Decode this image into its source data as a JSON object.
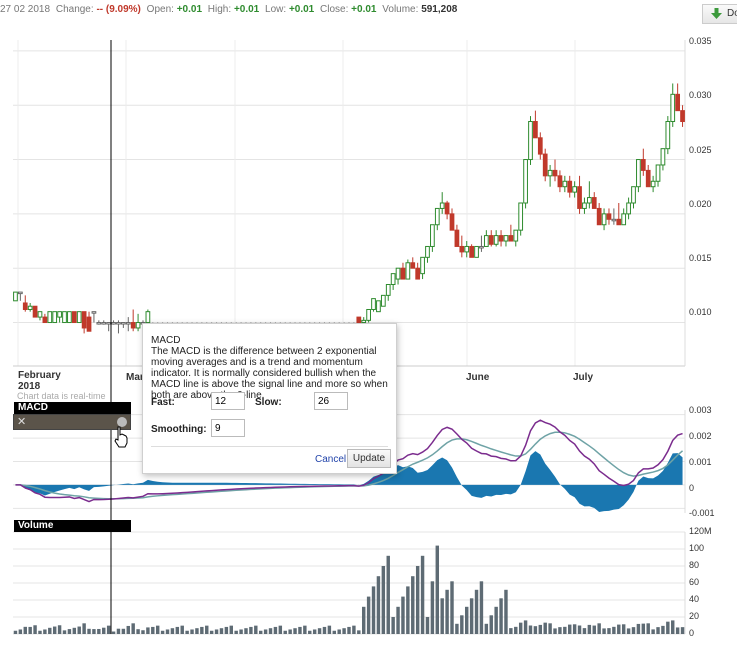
{
  "header": {
    "date": "27 02 2018",
    "change_label": "Change:",
    "change_value": "-- (9.09%)",
    "open_label": "Open:",
    "open_value": "+0.01",
    "high_label": "High:",
    "high_value": "+0.01",
    "low_label": "Low:",
    "low_value": "+0.01",
    "close_label": "Close:",
    "close_value": "+0.01",
    "volume_label": "Volume:",
    "volume_value": "591,208",
    "download_label": "Do"
  },
  "colors": {
    "up": "#2e8b2e",
    "down": "#c0392b",
    "flat": "#666666",
    "macd_line": "#7b2c8e",
    "signal_line": "#6fa3a6",
    "histogram": "#1a77b0",
    "volume": "#5e6b74"
  },
  "months": [
    "February",
    "2018",
    "Mar",
    "June",
    "July"
  ],
  "realtime_note": "Chart data is real-time",
  "price_axis": [
    "0.035",
    "0.030",
    "0.025",
    "0.020",
    "0.015",
    "0.010"
  ],
  "macd_axis": [
    "0.003",
    "0.002",
    "0.001",
    "0",
    "-0.001"
  ],
  "volume_axis": [
    "120M",
    "100",
    "80",
    "60",
    "40",
    "20",
    "0"
  ],
  "macd_panel_label": "MACD",
  "volume_panel_label": "Volume",
  "macd_dialog": {
    "title": "MACD",
    "description": "The MACD is the difference between 2 exponential moving averages and is a trend and momentum indicator. It is normally considered bullish when the MACD line is above the signal line and more so when both are above the 0-line.",
    "fast_label": "Fast:",
    "fast_value": "12",
    "slow_label": "Slow:",
    "slow_value": "26",
    "smoothing_label": "Smoothing:",
    "smoothing_value": "9",
    "cancel_label": "Cancel",
    "update_label": "Update"
  },
  "chart_data": {
    "type": "candlestick",
    "price_ylim": [
      0.006,
      0.036
    ],
    "candles": [
      [
        0.012,
        0.0128,
        0.012,
        0.0128
      ],
      [
        0.0128,
        0.0128,
        0.012,
        0.0128
      ],
      [
        0.0118,
        0.0125,
        0.011,
        0.0112
      ],
      [
        0.0112,
        0.0118,
        0.011,
        0.0115
      ],
      [
        0.0115,
        0.0115,
        0.0105,
        0.0105
      ],
      [
        0.0105,
        0.011,
        0.0102,
        0.011
      ],
      [
        0.0105,
        0.0108,
        0.01,
        0.01
      ],
      [
        0.01,
        0.011,
        0.01,
        0.011
      ],
      [
        0.01,
        0.011,
        0.01,
        0.011
      ],
      [
        0.0105,
        0.011,
        0.01,
        0.011
      ],
      [
        0.01,
        0.011,
        0.01,
        0.011
      ],
      [
        0.01,
        0.011,
        0.01,
        0.011
      ],
      [
        0.011,
        0.011,
        0.01,
        0.01
      ],
      [
        0.01,
        0.011,
        0.01,
        0.011
      ],
      [
        0.011,
        0.011,
        0.009,
        0.0095
      ],
      [
        0.0105,
        0.011,
        0.0092,
        0.0092
      ],
      [
        0.011,
        0.011,
        0.01,
        0.011
      ],
      [
        0.01,
        0.0102,
        0.0098,
        0.01
      ],
      [
        0.01,
        0.0102,
        0.0098,
        0.01
      ],
      [
        0.01,
        0.01,
        0.0092,
        0.01
      ],
      [
        0.01,
        0.0102,
        0.0098,
        0.01
      ],
      [
        0.01,
        0.0102,
        0.009,
        0.01
      ],
      [
        0.01,
        0.01,
        0.0095,
        0.01
      ],
      [
        0.01,
        0.0105,
        0.0092,
        0.01
      ],
      [
        0.01,
        0.0112,
        0.0092,
        0.0095
      ],
      [
        0.0095,
        0.0108,
        0.0092,
        0.01
      ],
      [
        0.01,
        0.0102,
        0.0098,
        0.01
      ],
      [
        0.01,
        0.0112,
        0.01,
        0.011
      ],
      [
        0.0098,
        0.01,
        0.0092,
        0.0098
      ],
      [
        0.0098,
        0.01,
        0.0092,
        0.0098
      ],
      [
        0.0098,
        0.01,
        0.0092,
        0.0098
      ],
      [
        0.0098,
        0.01,
        0.0092,
        0.0098
      ],
      [
        0.0098,
        0.01,
        0.0092,
        0.0098
      ],
      [
        0.0098,
        0.01,
        0.0092,
        0.0098
      ],
      [
        0.0098,
        0.01,
        0.0092,
        0.0098
      ],
      [
        0.0098,
        0.01,
        0.0092,
        0.0098
      ],
      [
        0.0098,
        0.01,
        0.0092,
        0.0098
      ],
      [
        0.0098,
        0.01,
        0.0092,
        0.0098
      ],
      [
        0.0098,
        0.01,
        0.0092,
        0.0098
      ],
      [
        0.0098,
        0.01,
        0.0092,
        0.0098
      ],
      [
        0.0098,
        0.01,
        0.0092,
        0.0098
      ],
      [
        0.0098,
        0.01,
        0.0092,
        0.0098
      ],
      [
        0.0098,
        0.01,
        0.0092,
        0.0098
      ],
      [
        0.0098,
        0.01,
        0.0092,
        0.0098
      ],
      [
        0.0098,
        0.01,
        0.0092,
        0.0098
      ],
      [
        0.0098,
        0.01,
        0.0092,
        0.0098
      ],
      [
        0.0098,
        0.01,
        0.0092,
        0.0098
      ],
      [
        0.0098,
        0.01,
        0.0092,
        0.0098
      ],
      [
        0.0098,
        0.01,
        0.0092,
        0.0098
      ],
      [
        0.0098,
        0.01,
        0.0092,
        0.0098
      ],
      [
        0.0098,
        0.01,
        0.0092,
        0.0098
      ],
      [
        0.0098,
        0.01,
        0.0092,
        0.0098
      ],
      [
        0.0098,
        0.01,
        0.0092,
        0.0098
      ],
      [
        0.0098,
        0.01,
        0.0092,
        0.0098
      ],
      [
        0.0098,
        0.01,
        0.0092,
        0.0098
      ],
      [
        0.0098,
        0.01,
        0.0092,
        0.0098
      ],
      [
        0.0098,
        0.01,
        0.0092,
        0.0098
      ],
      [
        0.0098,
        0.01,
        0.0092,
        0.0098
      ],
      [
        0.0098,
        0.01,
        0.0092,
        0.0098
      ],
      [
        0.0098,
        0.01,
        0.0092,
        0.0098
      ],
      [
        0.0098,
        0.01,
        0.0092,
        0.0098
      ],
      [
        0.0098,
        0.01,
        0.0092,
        0.0098
      ],
      [
        0.0098,
        0.01,
        0.0092,
        0.0098
      ],
      [
        0.0098,
        0.01,
        0.0092,
        0.0098
      ],
      [
        0.0098,
        0.01,
        0.0092,
        0.0098
      ],
      [
        0.0098,
        0.01,
        0.0092,
        0.0098
      ],
      [
        0.0098,
        0.01,
        0.0092,
        0.0098
      ],
      [
        0.0098,
        0.01,
        0.0092,
        0.0098
      ],
      [
        0.0098,
        0.01,
        0.0092,
        0.0098
      ],
      [
        0.0098,
        0.01,
        0.0092,
        0.0098
      ],
      [
        0.0105,
        0.0105,
        0.0095,
        0.0095
      ],
      [
        0.01,
        0.0105,
        0.01,
        0.0102
      ],
      [
        0.0102,
        0.0112,
        0.01,
        0.0112
      ],
      [
        0.0112,
        0.0122,
        0.011,
        0.0122
      ],
      [
        0.011,
        0.012,
        0.011,
        0.012
      ],
      [
        0.0115,
        0.0125,
        0.0115,
        0.0125
      ],
      [
        0.0125,
        0.0135,
        0.012,
        0.0135
      ],
      [
        0.0135,
        0.0145,
        0.013,
        0.0145
      ],
      [
        0.014,
        0.015,
        0.0135,
        0.015
      ],
      [
        0.015,
        0.0155,
        0.014,
        0.014
      ],
      [
        0.014,
        0.0158,
        0.014,
        0.0155
      ],
      [
        0.0155,
        0.016,
        0.015,
        0.015
      ],
      [
        0.015,
        0.0155,
        0.014,
        0.014
      ],
      [
        0.0145,
        0.016,
        0.014,
        0.016
      ],
      [
        0.016,
        0.017,
        0.0155,
        0.017
      ],
      [
        0.017,
        0.019,
        0.0165,
        0.019
      ],
      [
        0.019,
        0.0205,
        0.0185,
        0.0205
      ],
      [
        0.0205,
        0.022,
        0.02,
        0.021
      ],
      [
        0.021,
        0.0212,
        0.0195,
        0.02
      ],
      [
        0.02,
        0.0205,
        0.0185,
        0.0185
      ],
      [
        0.0185,
        0.019,
        0.017,
        0.017
      ],
      [
        0.017,
        0.018,
        0.016,
        0.0165
      ],
      [
        0.0165,
        0.0175,
        0.016,
        0.017
      ],
      [
        0.017,
        0.0172,
        0.016,
        0.016
      ],
      [
        0.016,
        0.017,
        0.016,
        0.017
      ],
      [
        0.017,
        0.018,
        0.0165,
        0.017
      ],
      [
        0.017,
        0.0185,
        0.017,
        0.018
      ],
      [
        0.018,
        0.0185,
        0.017,
        0.0172
      ],
      [
        0.0172,
        0.0185,
        0.017,
        0.018
      ],
      [
        0.018,
        0.0185,
        0.017,
        0.0175
      ],
      [
        0.0175,
        0.018,
        0.017,
        0.018
      ],
      [
        0.018,
        0.019,
        0.0175,
        0.0175
      ],
      [
        0.0175,
        0.0185,
        0.017,
        0.0185
      ],
      [
        0.0185,
        0.021,
        0.018,
        0.021
      ],
      [
        0.021,
        0.025,
        0.0205,
        0.025
      ],
      [
        0.025,
        0.029,
        0.0245,
        0.0285
      ],
      [
        0.0285,
        0.0295,
        0.027,
        0.027
      ],
      [
        0.027,
        0.0275,
        0.025,
        0.0255
      ],
      [
        0.0255,
        0.026,
        0.023,
        0.0235
      ],
      [
        0.0235,
        0.0245,
        0.0225,
        0.024
      ],
      [
        0.024,
        0.025,
        0.023,
        0.0235
      ],
      [
        0.0235,
        0.024,
        0.022,
        0.0225
      ],
      [
        0.0225,
        0.0235,
        0.022,
        0.023
      ],
      [
        0.023,
        0.0235,
        0.0215,
        0.022
      ],
      [
        0.022,
        0.023,
        0.0215,
        0.0225
      ],
      [
        0.0225,
        0.0235,
        0.02,
        0.0205
      ],
      [
        0.0205,
        0.0215,
        0.02,
        0.021
      ],
      [
        0.021,
        0.023,
        0.0205,
        0.0215
      ],
      [
        0.0215,
        0.022,
        0.0205,
        0.0205
      ],
      [
        0.0205,
        0.021,
        0.019,
        0.019
      ],
      [
        0.019,
        0.0205,
        0.0185,
        0.02
      ],
      [
        0.02,
        0.0205,
        0.019,
        0.0195
      ],
      [
        0.0195,
        0.0205,
        0.019,
        0.0195
      ],
      [
        0.0195,
        0.021,
        0.019,
        0.019
      ],
      [
        0.019,
        0.0205,
        0.019,
        0.02
      ],
      [
        0.02,
        0.0215,
        0.0195,
        0.021
      ],
      [
        0.021,
        0.0225,
        0.0205,
        0.0225
      ],
      [
        0.0225,
        0.025,
        0.022,
        0.025
      ],
      [
        0.025,
        0.026,
        0.0235,
        0.024
      ],
      [
        0.024,
        0.0245,
        0.0225,
        0.0225
      ],
      [
        0.0225,
        0.0235,
        0.022,
        0.023
      ],
      [
        0.023,
        0.0245,
        0.0225,
        0.0245
      ],
      [
        0.0245,
        0.026,
        0.024,
        0.026
      ],
      [
        0.026,
        0.029,
        0.0255,
        0.0285
      ],
      [
        0.0285,
        0.032,
        0.028,
        0.031
      ],
      [
        0.031,
        0.032,
        0.0295,
        0.0295
      ],
      [
        0.0295,
        0.03,
        0.028,
        0.0285
      ]
    ],
    "macd": {
      "ylim": [
        -0.0012,
        0.0032
      ]
    },
    "volume": {
      "ylim": [
        0,
        120
      ]
    }
  }
}
